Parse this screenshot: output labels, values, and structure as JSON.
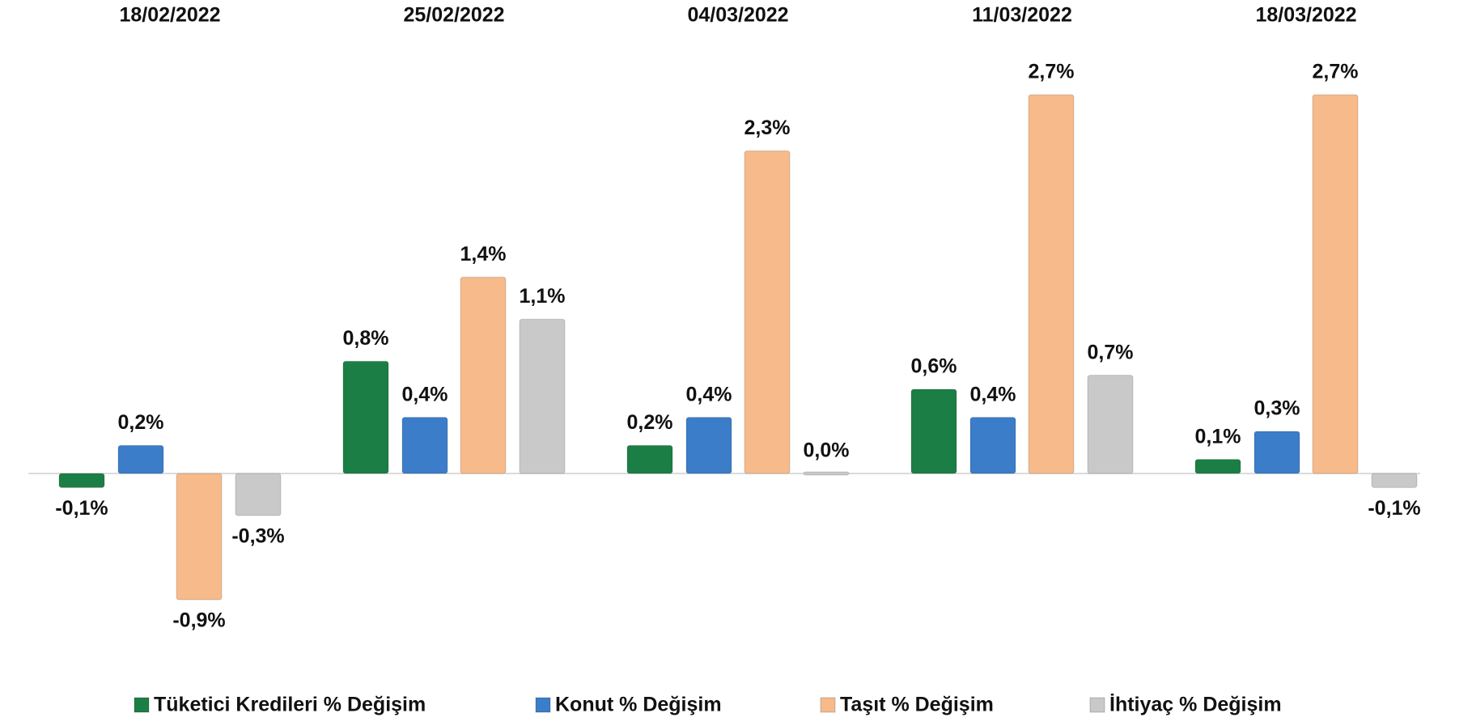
{
  "chart_data": {
    "type": "bar",
    "categories": [
      "18/02/2022",
      "25/02/2022",
      "04/03/2022",
      "11/03/2022",
      "18/03/2022"
    ],
    "series": [
      {
        "name": "Tüketici Kredileri % Değişim",
        "color": "#1b7f45",
        "values": [
          -0.1,
          0.8,
          0.2,
          0.6,
          0.1
        ],
        "value_labels": [
          "-0,1%",
          "0,8%",
          "0,2%",
          "0,6%",
          "0,1%"
        ]
      },
      {
        "name": "Konut % Değişim",
        "color": "#3b7dc8",
        "values": [
          0.2,
          0.4,
          0.4,
          0.4,
          0.3
        ],
        "value_labels": [
          "0,2%",
          "0,4%",
          "0,4%",
          "0,4%",
          "0,3%"
        ]
      },
      {
        "name": "Taşıt % Değişim",
        "color": "#f7ba8b",
        "values": [
          -0.9,
          1.4,
          2.3,
          2.7,
          2.7
        ],
        "value_labels": [
          "-0,9%",
          "1,4%",
          "2,3%",
          "2,7%",
          "2,7%"
        ]
      },
      {
        "name": "İhtiyaç % Değişim",
        "color": "#c9c9c9",
        "values": [
          -0.3,
          1.1,
          0.0,
          0.7,
          -0.1
        ],
        "value_labels": [
          "-0,3%",
          "1,1%",
          "0,0%",
          "0,7%",
          "-0,1%"
        ]
      }
    ]
  }
}
